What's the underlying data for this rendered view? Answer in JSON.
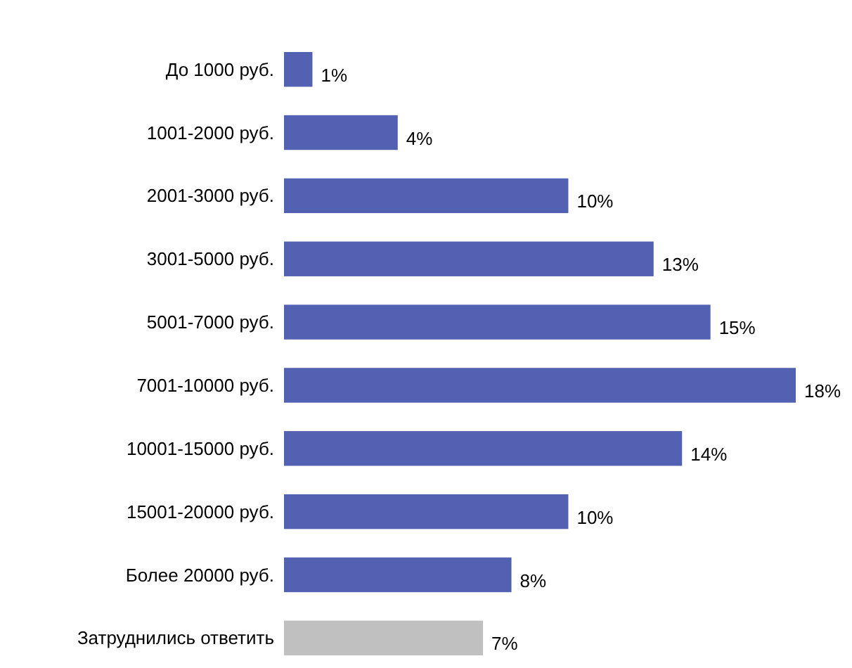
{
  "chart_data": {
    "type": "bar",
    "orientation": "horizontal",
    "categories": [
      "До 1000 руб.",
      "1001-2000 руб.",
      "2001-3000 руб.",
      "3001-5000 руб.",
      "5001-7000 руб.",
      "7001-10000 руб.",
      "10001-15000 руб.",
      "15001-20000 руб.",
      "Более 20000 руб.",
      "Затруднились ответить"
    ],
    "values": [
      1,
      4,
      10,
      13,
      15,
      18,
      14,
      10,
      8,
      7
    ],
    "value_labels": [
      "1%",
      "4%",
      "10%",
      "13%",
      "15%",
      "18%",
      "14%",
      "10%",
      "8%",
      "7%"
    ],
    "colors": [
      "#5361b3",
      "#5361b3",
      "#5361b3",
      "#5361b3",
      "#5361b3",
      "#5361b3",
      "#5361b3",
      "#5361b3",
      "#5361b3",
      "#c0c0c0"
    ],
    "relative": false
  }
}
